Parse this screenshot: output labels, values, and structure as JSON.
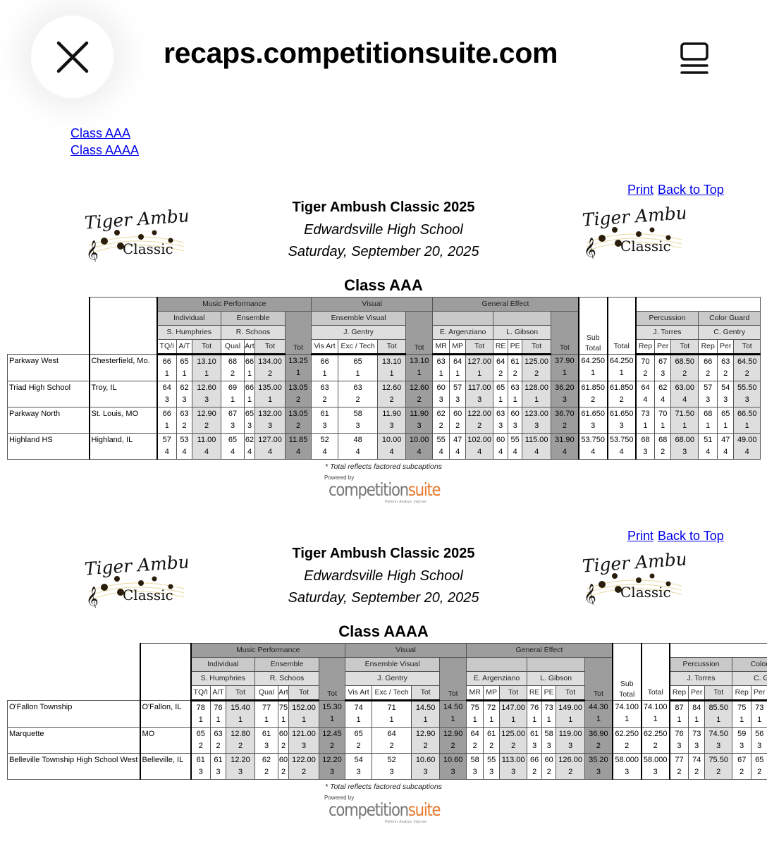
{
  "browser": {
    "url": "recaps.competitionsuite.com",
    "close_icon": "close-icon",
    "menu_icon": "tab-overview-icon"
  },
  "nav": {
    "links": [
      "Class AAA",
      "Class AAAA"
    ]
  },
  "logo": {
    "line1": "Tiger Ambush",
    "line2": "Classic"
  },
  "powered": {
    "prefix": "Powered by",
    "brand1": "competition",
    "brand2": "suite",
    "tagline": "Perform. Analyze. Improve"
  },
  "colors": {
    "link": "#0000ee",
    "dark": "#9d9d9d",
    "mid": "#c9c9c9",
    "light": "#dedede",
    "brand_orange": "#e8782a"
  },
  "sections": [
    {
      "print": "Print",
      "back": "Back to Top",
      "title": "Tiger Ambush Classic 2025",
      "venue": "Edwardsville High School",
      "date": "Saturday, September 20, 2025",
      "class_name": "Class AAA",
      "footnote": "* Total reflects factored subcaptions",
      "table": {
        "captions": [
          "Music Performance",
          "Visual",
          "General Effect",
          "Percussion",
          "Color Guard"
        ],
        "subcaptions": [
          "Individual",
          "Ensemble",
          "Ensemble Visual",
          "",
          ""
        ],
        "judges": [
          "S. Humphries",
          "R. Schoos",
          "J. Gentry",
          "E. Argenziano",
          "L. Gibson",
          "J. Torres",
          "C. Gentry"
        ],
        "sub_total": [
          "Sub",
          "Total"
        ],
        "total": "Total",
        "tot": "Tot",
        "columns": [
          "TQ/I",
          "A/T",
          "Tot",
          "Qual",
          "Art",
          "Tot",
          "Tot",
          "Vis Art",
          "Exc / Tech",
          "Tot",
          "Tot",
          "MR",
          "MP",
          "Tot",
          "RE",
          "PE",
          "Tot",
          "Tot",
          "Sub Total",
          "Total",
          "Rep",
          "Per",
          "Tot",
          "Rep",
          "Per",
          "Tot"
        ],
        "rows": [
          {
            "name": "Parkway West",
            "city": "Chesterfield, Mo.",
            "cells": [
              [
                "66",
                "1"
              ],
              [
                "65",
                "1"
              ],
              [
                "13.10",
                "1"
              ],
              [
                "68",
                "2"
              ],
              [
                "66",
                "1"
              ],
              [
                "134.00",
                "2"
              ],
              [
                "13.25",
                "1"
              ],
              [
                "66",
                "1"
              ],
              [
                "65",
                "1"
              ],
              [
                "13.10",
                "1"
              ],
              [
                "13.10",
                "1"
              ],
              [
                "63",
                "1"
              ],
              [
                "64",
                "1"
              ],
              [
                "127.00",
                "1"
              ],
              [
                "64",
                "2"
              ],
              [
                "61",
                "2"
              ],
              [
                "125.00",
                "2"
              ],
              [
                "37.90",
                "1"
              ],
              [
                "64.250",
                "1"
              ],
              [
                "64.250",
                "1"
              ],
              [
                "70",
                "2"
              ],
              [
                "67",
                "3"
              ],
              [
                "68.50",
                "2"
              ],
              [
                "66",
                "2"
              ],
              [
                "63",
                "2"
              ],
              [
                "64.50",
                "2"
              ]
            ]
          },
          {
            "name": "Triad High School",
            "city": "Troy, IL",
            "cells": [
              [
                "64",
                "3"
              ],
              [
                "62",
                "3"
              ],
              [
                "12.60",
                "3"
              ],
              [
                "69",
                "1"
              ],
              [
                "66",
                "1"
              ],
              [
                "135.00",
                "1"
              ],
              [
                "13.05",
                "2"
              ],
              [
                "63",
                "2"
              ],
              [
                "63",
                "2"
              ],
              [
                "12.60",
                "2"
              ],
              [
                "12.60",
                "2"
              ],
              [
                "60",
                "3"
              ],
              [
                "57",
                "3"
              ],
              [
                "117.00",
                "3"
              ],
              [
                "65",
                "1"
              ],
              [
                "63",
                "1"
              ],
              [
                "128.00",
                "1"
              ],
              [
                "36.20",
                "3"
              ],
              [
                "61.850",
                "2"
              ],
              [
                "61.850",
                "2"
              ],
              [
                "64",
                "4"
              ],
              [
                "62",
                "4"
              ],
              [
                "63.00",
                "4"
              ],
              [
                "57",
                "3"
              ],
              [
                "54",
                "3"
              ],
              [
                "55.50",
                "3"
              ]
            ]
          },
          {
            "name": "Parkway North",
            "city": "St. Louis, MO",
            "cells": [
              [
                "66",
                "1"
              ],
              [
                "63",
                "2"
              ],
              [
                "12.90",
                "2"
              ],
              [
                "67",
                "3"
              ],
              [
                "65",
                "3"
              ],
              [
                "132.00",
                "3"
              ],
              [
                "13.05",
                "2"
              ],
              [
                "61",
                "3"
              ],
              [
                "58",
                "3"
              ],
              [
                "11.90",
                "3"
              ],
              [
                "11.90",
                "3"
              ],
              [
                "62",
                "2"
              ],
              [
                "60",
                "2"
              ],
              [
                "122.00",
                "2"
              ],
              [
                "63",
                "3"
              ],
              [
                "60",
                "3"
              ],
              [
                "123.00",
                "3"
              ],
              [
                "36.70",
                "2"
              ],
              [
                "61.650",
                "3"
              ],
              [
                "61.650",
                "3"
              ],
              [
                "73",
                "1"
              ],
              [
                "70",
                "1"
              ],
              [
                "71.50",
                "1"
              ],
              [
                "68",
                "1"
              ],
              [
                "65",
                "1"
              ],
              [
                "66.50",
                "1"
              ]
            ]
          },
          {
            "name": "Highland HS",
            "city": "Highland, IL",
            "cells": [
              [
                "57",
                "4"
              ],
              [
                "53",
                "4"
              ],
              [
                "11.00",
                "4"
              ],
              [
                "65",
                "4"
              ],
              [
                "62",
                "4"
              ],
              [
                "127.00",
                "4"
              ],
              [
                "11.85",
                "4"
              ],
              [
                "52",
                "4"
              ],
              [
                "48",
                "4"
              ],
              [
                "10.00",
                "4"
              ],
              [
                "10.00",
                "4"
              ],
              [
                "55",
                "4"
              ],
              [
                "47",
                "4"
              ],
              [
                "102.00",
                "4"
              ],
              [
                "60",
                "4"
              ],
              [
                "55",
                "4"
              ],
              [
                "115.00",
                "4"
              ],
              [
                "31.90",
                "4"
              ],
              [
                "53.750",
                "4"
              ],
              [
                "53.750",
                "4"
              ],
              [
                "68",
                "3"
              ],
              [
                "68",
                "2"
              ],
              [
                "68.00",
                "3"
              ],
              [
                "51",
                "4"
              ],
              [
                "47",
                "4"
              ],
              [
                "49.00",
                "4"
              ]
            ]
          }
        ]
      }
    },
    {
      "print": "Print",
      "back": "Back to Top",
      "title": "Tiger Ambush Classic 2025",
      "venue": "Edwardsville High School",
      "date": "Saturday, September 20, 2025",
      "class_name": "Class AAAA",
      "footnote": "* Total reflects factored subcaptions",
      "table": {
        "captions": [
          "Music Performance",
          "Visual",
          "General Effect",
          "Percussion",
          "Color G"
        ],
        "subcaptions": [
          "Individual",
          "Ensemble",
          "Ensemble Visual",
          "",
          ""
        ],
        "judges": [
          "S. Humphries",
          "R. Schoos",
          "J. Gentry",
          "E. Argenziano",
          "L. Gibson",
          "J. Torres",
          "C. Ge"
        ],
        "sub_total": [
          "Sub",
          "Total"
        ],
        "total": "Total",
        "tot": "Tot",
        "columns": [
          "TQ/I",
          "A/T",
          "Tot",
          "Qual",
          "Art",
          "Tot",
          "Tot",
          "Vis Art",
          "Exc / Tech",
          "Tot",
          "Tot",
          "MR",
          "MP",
          "Tot",
          "RE",
          "PE",
          "Tot",
          "Tot",
          "Sub Total",
          "Total",
          "Rep",
          "Per",
          "Tot",
          "Rep",
          "Per"
        ],
        "rows": [
          {
            "name": "O'Fallon Township",
            "city": "O'Fallon, IL",
            "cells": [
              [
                "78",
                "1"
              ],
              [
                "76",
                "1"
              ],
              [
                "15.40",
                "1"
              ],
              [
                "77",
                "1"
              ],
              [
                "75",
                "1"
              ],
              [
                "152.00",
                "1"
              ],
              [
                "15.30",
                "1"
              ],
              [
                "74",
                "1"
              ],
              [
                "71",
                "1"
              ],
              [
                "14.50",
                "1"
              ],
              [
                "14.50",
                "1"
              ],
              [
                "75",
                "1"
              ],
              [
                "72",
                "1"
              ],
              [
                "147.00",
                "1"
              ],
              [
                "76",
                "1"
              ],
              [
                "73",
                "1"
              ],
              [
                "149.00",
                "1"
              ],
              [
                "44.30",
                "1"
              ],
              [
                "74.100",
                "1"
              ],
              [
                "74.100",
                "1"
              ],
              [
                "87",
                "1"
              ],
              [
                "84",
                "1"
              ],
              [
                "85.50",
                "1"
              ],
              [
                "75",
                "1"
              ],
              [
                "73",
                "1"
              ]
            ]
          },
          {
            "name": "Marquette",
            "city": "MO",
            "cells": [
              [
                "65",
                "2"
              ],
              [
                "63",
                "2"
              ],
              [
                "12.80",
                "2"
              ],
              [
                "61",
                "3"
              ],
              [
                "60",
                "2"
              ],
              [
                "121.00",
                "3"
              ],
              [
                "12.45",
                "2"
              ],
              [
                "65",
                "2"
              ],
              [
                "64",
                "2"
              ],
              [
                "12.90",
                "2"
              ],
              [
                "12.90",
                "2"
              ],
              [
                "64",
                "2"
              ],
              [
                "61",
                "2"
              ],
              [
                "125.00",
                "2"
              ],
              [
                "61",
                "3"
              ],
              [
                "58",
                "3"
              ],
              [
                "119.00",
                "3"
              ],
              [
                "36.90",
                "2"
              ],
              [
                "62.250",
                "2"
              ],
              [
                "62.250",
                "2"
              ],
              [
                "76",
                "3"
              ],
              [
                "73",
                "3"
              ],
              [
                "74.50",
                "3"
              ],
              [
                "59",
                "3"
              ],
              [
                "56",
                "3"
              ]
            ]
          },
          {
            "name": "Belleville Township High School West",
            "city": "Belleville, IL",
            "cells": [
              [
                "61",
                "3"
              ],
              [
                "61",
                "3"
              ],
              [
                "12.20",
                "3"
              ],
              [
                "62",
                "2"
              ],
              [
                "60",
                "2"
              ],
              [
                "122.00",
                "2"
              ],
              [
                "12.20",
                "3"
              ],
              [
                "54",
                "3"
              ],
              [
                "52",
                "3"
              ],
              [
                "10.60",
                "3"
              ],
              [
                "10.60",
                "3"
              ],
              [
                "58",
                "3"
              ],
              [
                "55",
                "3"
              ],
              [
                "113.00",
                "3"
              ],
              [
                "66",
                "2"
              ],
              [
                "60",
                "2"
              ],
              [
                "126.00",
                "2"
              ],
              [
                "35.20",
                "3"
              ],
              [
                "58.000",
                "3"
              ],
              [
                "58.000",
                "3"
              ],
              [
                "77",
                "2"
              ],
              [
                "74",
                "2"
              ],
              [
                "75.50",
                "2"
              ],
              [
                "67",
                "2"
              ],
              [
                "65",
                "2"
              ]
            ]
          }
        ]
      }
    }
  ]
}
